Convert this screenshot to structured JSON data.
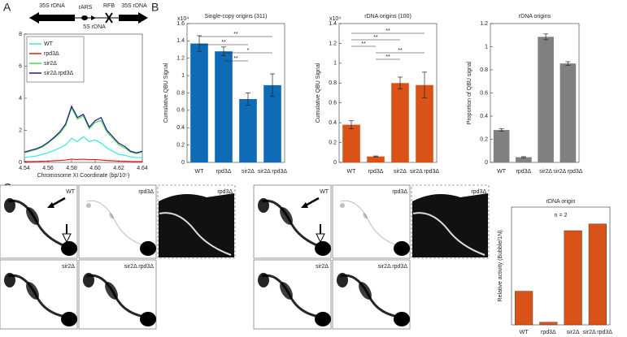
{
  "panel_labels": [
    "A",
    "B",
    "C"
  ],
  "diagram": {
    "labels": [
      "35S rDNA",
      "rARS",
      "RFB",
      "35S rDNA",
      "5S rDNA"
    ]
  },
  "gels": [
    {
      "labels": [
        "WT",
        "rpd3Δ",
        "rpd3Δ",
        "sir2Δ",
        "sir2Δ rpd3Δ"
      ]
    },
    {
      "labels": [
        "WT",
        "rpd3Δ",
        "rpd3Δ",
        "sir2Δ",
        "sir2Δ rpd3Δ"
      ]
    }
  ],
  "chart_data": [
    {
      "type": "line",
      "xlabel": "Chromosome XI Coordinate (bp/10⁵)",
      "x": [
        4.54,
        4.545,
        4.55,
        4.555,
        4.56,
        4.565,
        4.57,
        4.575,
        4.58,
        4.585,
        4.59,
        4.595,
        4.6,
        4.605,
        4.61,
        4.615,
        4.62,
        4.625,
        4.63,
        4.635,
        4.64
      ],
      "series": [
        {
          "name": "WT",
          "color": "#33e6e6",
          "values": [
            0.3,
            0.35,
            0.4,
            0.5,
            0.6,
            0.75,
            0.9,
            1.1,
            1.5,
            1.3,
            1.6,
            1.3,
            1.4,
            1.2,
            0.9,
            0.7,
            0.5,
            0.45,
            0.35,
            0.3,
            0.3
          ]
        },
        {
          "name": "rpd3Δ",
          "color": "#e61a1a",
          "values": [
            0.05,
            0.05,
            0.06,
            0.07,
            0.08,
            0.1,
            0.12,
            0.15,
            0.2,
            0.18,
            0.2,
            0.17,
            0.18,
            0.15,
            0.12,
            0.1,
            0.08,
            0.07,
            0.06,
            0.05,
            0.05
          ]
        },
        {
          "name": "sir2Δ",
          "color": "#4dd94d",
          "values": [
            0.6,
            0.7,
            0.8,
            0.95,
            1.2,
            1.5,
            1.8,
            2.3,
            3.4,
            2.7,
            2.9,
            2.1,
            2.5,
            2.6,
            1.9,
            1.5,
            1.1,
            0.9,
            0.65,
            0.55,
            0.65
          ]
        },
        {
          "name": "sir2Δ rpd3Δ",
          "color": "#1a1a99",
          "values": [
            0.65,
            0.75,
            0.85,
            1.0,
            1.25,
            1.55,
            1.9,
            2.4,
            3.5,
            2.8,
            3.0,
            2.2,
            2.6,
            2.8,
            2.0,
            1.6,
            1.2,
            1.0,
            0.7,
            0.6,
            0.7
          ]
        }
      ],
      "xlim": [
        4.54,
        4.64
      ],
      "xticks": [
        4.54,
        4.56,
        4.58,
        {
          "value": 4.6,
          "label": "4.60"
        },
        4.62,
        4.64
      ],
      "ylim": [
        0,
        8
      ],
      "yticks": [
        0,
        2,
        4,
        6,
        8
      ],
      "legend": "upper left"
    },
    {
      "type": "bar",
      "title": "Single-copy origins (311)",
      "ylabel": "Cumulative QBU Signal",
      "y_multiplier": "x10⁴",
      "categories": [
        "WT",
        "rpd3Δ",
        "sir2Δ",
        "sir2Δ rpd3Δ"
      ],
      "values": [
        1.37,
        1.28,
        0.73,
        0.89
      ],
      "errors": [
        0.09,
        0.05,
        0.07,
        0.13
      ],
      "color": "#0f6bb5",
      "significance": [
        "**",
        "**",
        "*",
        "**"
      ],
      "ylim": [
        0,
        1.6
      ],
      "yticks": [
        0,
        0.2,
        0.4,
        0.6,
        0.8,
        1,
        1.2,
        1.4,
        1.6
      ]
    },
    {
      "type": "bar",
      "title": "rDNA origins (100)",
      "ylabel": "Cumulative QBU Signal",
      "y_multiplier": "x10⁴",
      "categories": [
        "WT",
        "rpd3Δ",
        "sir2Δ",
        "sir2Δ rpd3Δ"
      ],
      "values": [
        0.38,
        0.06,
        0.8,
        0.78
      ],
      "errors": [
        0.04,
        0.005,
        0.06,
        0.13
      ],
      "color": "#d95319",
      "significance": [
        "**",
        "**",
        "**",
        "**",
        "**"
      ],
      "ylim": [
        0,
        1.4
      ],
      "yticks": [
        0,
        0.2,
        0.4,
        0.6,
        0.8,
        1,
        1.2,
        1.4
      ]
    },
    {
      "type": "bar",
      "title": "rDNA origins",
      "ylabel": "Proportion of QBU signal",
      "categories": [
        "WT",
        "rpd3Δ",
        "sir2Δ",
        "sir2Δ rpd3Δ"
      ],
      "values": [
        0.28,
        0.045,
        1.085,
        0.855
      ],
      "errors": [
        0.01,
        0.005,
        0.025,
        0.015
      ],
      "color": "#808080",
      "ylim": [
        0,
        1.2
      ],
      "yticks": [
        0,
        0.2,
        0.4,
        0.6,
        0.8,
        1,
        1.2
      ]
    },
    {
      "type": "bar",
      "title": "rDNA origin",
      "annotation": "n = 2",
      "ylabel": "Relative activity (Bubble/1N)",
      "categories": [
        "WT",
        "rpd3Δ",
        "sir2Δ",
        "sir2Δ rpd3Δ"
      ],
      "values": [
        1,
        0.08,
        2.8,
        3.0
      ],
      "color": "#d95319",
      "ylim": [
        0,
        3.5
      ]
    }
  ]
}
